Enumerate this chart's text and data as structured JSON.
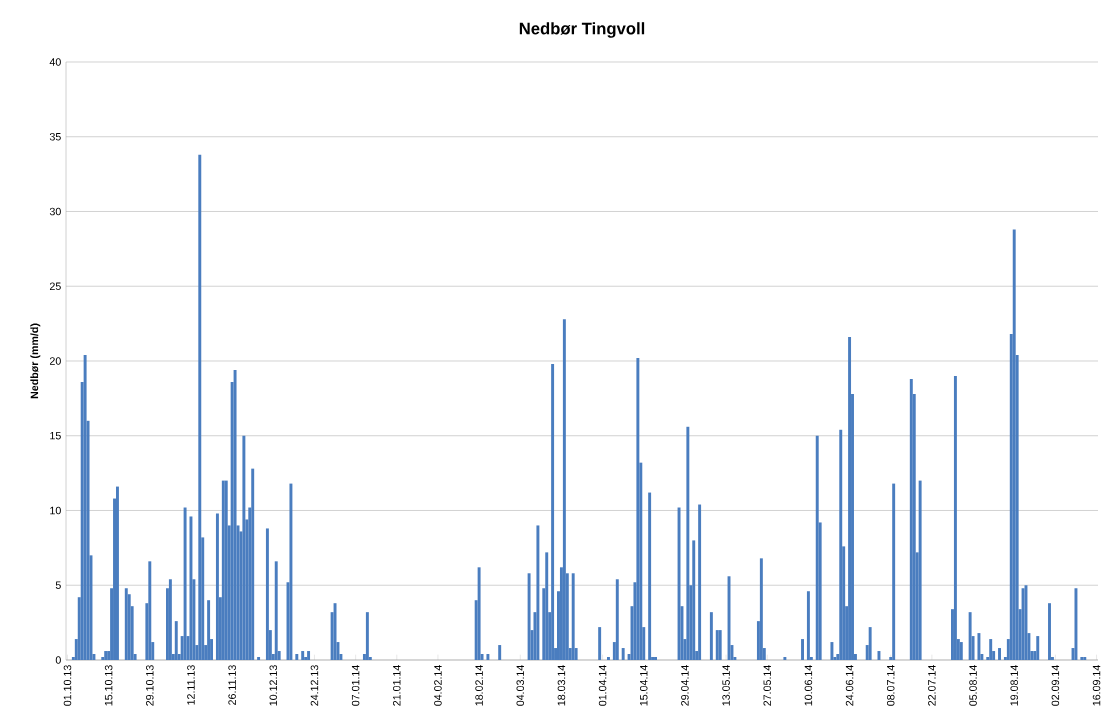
{
  "chart_data": {
    "type": "bar",
    "title": "Nedbør Tingvoll",
    "ylabel": "Nedbør (mm/d)",
    "color": "#4a7dbf",
    "grid": "y",
    "ylim": [
      0,
      40
    ],
    "yticks": [
      0,
      5,
      10,
      15,
      20,
      25,
      30,
      35,
      40
    ],
    "categories": [
      "01.10.13",
      null,
      null,
      null,
      null,
      null,
      null,
      null,
      null,
      null,
      null,
      null,
      null,
      null,
      "15.10.13",
      null,
      null,
      null,
      null,
      null,
      null,
      null,
      null,
      null,
      null,
      null,
      null,
      null,
      "29.10.13",
      null,
      null,
      null,
      null,
      null,
      null,
      null,
      null,
      null,
      null,
      null,
      null,
      null,
      "12.11.13",
      null,
      null,
      null,
      null,
      null,
      null,
      null,
      null,
      null,
      null,
      null,
      null,
      null,
      "26.11.13",
      null,
      null,
      null,
      null,
      null,
      null,
      null,
      null,
      null,
      null,
      null,
      null,
      null,
      "10.12.13",
      null,
      null,
      null,
      null,
      null,
      null,
      null,
      null,
      null,
      null,
      null,
      null,
      null,
      "24.12.13",
      null,
      null,
      null,
      null,
      null,
      null,
      null,
      null,
      null,
      null,
      null,
      null,
      null,
      "07.01.14",
      null,
      null,
      null,
      null,
      null,
      null,
      null,
      null,
      null,
      null,
      null,
      null,
      null,
      "21.01.14",
      null,
      null,
      null,
      null,
      null,
      null,
      null,
      null,
      null,
      null,
      null,
      null,
      null,
      "04.02.14",
      null,
      null,
      null,
      null,
      null,
      null,
      null,
      null,
      null,
      null,
      null,
      null,
      null,
      "18.02.14",
      null,
      null,
      null,
      null,
      null,
      null,
      null,
      null,
      null,
      null,
      null,
      null,
      null,
      "04.03.14",
      null,
      null,
      null,
      null,
      null,
      null,
      null,
      null,
      null,
      null,
      null,
      null,
      null,
      "18.03.14",
      null,
      null,
      null,
      null,
      null,
      null,
      null,
      null,
      null,
      null,
      null,
      null,
      null,
      "01.04.14",
      null,
      null,
      null,
      null,
      null,
      null,
      null,
      null,
      null,
      null,
      null,
      null,
      null,
      "15.04.14",
      null,
      null,
      null,
      null,
      null,
      null,
      null,
      null,
      null,
      null,
      null,
      null,
      null,
      "29.04.14",
      null,
      null,
      null,
      null,
      null,
      null,
      null,
      null,
      null,
      null,
      null,
      null,
      null,
      "13.05.14",
      null,
      null,
      null,
      null,
      null,
      null,
      null,
      null,
      null,
      null,
      null,
      null,
      null,
      "27.05.14",
      null,
      null,
      null,
      null,
      null,
      null,
      null,
      null,
      null,
      null,
      null,
      null,
      null,
      "10.06.14",
      null,
      null,
      null,
      null,
      null,
      null,
      null,
      null,
      null,
      null,
      null,
      null,
      null,
      "24.06.14",
      null,
      null,
      null,
      null,
      null,
      null,
      null,
      null,
      null,
      null,
      null,
      null,
      null,
      "08.07.14",
      null,
      null,
      null,
      null,
      null,
      null,
      null,
      null,
      null,
      null,
      null,
      null,
      null,
      "22.07.14",
      null,
      null,
      null,
      null,
      null,
      null,
      null,
      null,
      null,
      null,
      null,
      null,
      null,
      "05.08.14",
      null,
      null,
      null,
      null,
      null,
      null,
      null,
      null,
      null,
      null,
      null,
      null,
      null,
      "19.08.14",
      null,
      null,
      null,
      null,
      null,
      null,
      null,
      null,
      null,
      null,
      null,
      null,
      null,
      "02.09.14",
      null,
      null,
      null,
      null,
      null,
      null,
      null,
      null,
      null,
      null,
      null,
      null,
      null,
      "16.09.14"
    ],
    "values": [
      0,
      0,
      0.2,
      1.4,
      4.2,
      18.6,
      20.4,
      16.0,
      7.0,
      0.4,
      0,
      0,
      0.2,
      0.6,
      0.6,
      4.8,
      10.8,
      11.6,
      0,
      0,
      4.8,
      4.4,
      3.6,
      0.4,
      0,
      0,
      0,
      3.8,
      6.6,
      1.2,
      0,
      0,
      0,
      0,
      4.8,
      5.4,
      0.4,
      2.6,
      0.4,
      1.6,
      10.2,
      1.6,
      9.6,
      5.4,
      1.0,
      33.8,
      8.2,
      1.0,
      4.0,
      1.4,
      0,
      9.8,
      4.2,
      12.0,
      12.0,
      9.0,
      18.6,
      19.4,
      9.0,
      8.6,
      15.0,
      9.4,
      10.2,
      12.8,
      0,
      0.2,
      0,
      0,
      8.8,
      2.0,
      0.4,
      6.6,
      0.6,
      0,
      0,
      5.2,
      11.8,
      0,
      0.4,
      0,
      0.6,
      0.2,
      0.6,
      0,
      0,
      0,
      0,
      0,
      0,
      0,
      3.2,
      3.8,
      1.2,
      0.4,
      0,
      0,
      0,
      0,
      0,
      0,
      0,
      0.4,
      3.2,
      0.2,
      0,
      0,
      0,
      0,
      0,
      0,
      0,
      0,
      0,
      0,
      0,
      0,
      0,
      0,
      0,
      0,
      0,
      0,
      0,
      0,
      0,
      0,
      0,
      0,
      0,
      0,
      0,
      0,
      0,
      0,
      0,
      0,
      0,
      0,
      0,
      4.0,
      6.2,
      0.4,
      0,
      0.4,
      0,
      0,
      0,
      1.0,
      0,
      0,
      0,
      0,
      0,
      0,
      0,
      0,
      0,
      5.8,
      2.0,
      3.2,
      9.0,
      0,
      4.8,
      7.2,
      3.2,
      19.8,
      0.8,
      4.6,
      6.2,
      22.8,
      5.8,
      0.8,
      5.8,
      0.8,
      0,
      0,
      0,
      0,
      0,
      0,
      0,
      2.2,
      0,
      0,
      0.2,
      0,
      1.2,
      5.4,
      0,
      0.8,
      0,
      0.4,
      3.6,
      5.2,
      20.2,
      13.2,
      2.2,
      0,
      11.2,
      0.2,
      0.2,
      0,
      0,
      0,
      0,
      0,
      0,
      0,
      10.2,
      3.6,
      1.4,
      15.6,
      5.0,
      8.0,
      0.6,
      10.4,
      0,
      0,
      0,
      3.2,
      0,
      2.0,
      2.0,
      0,
      0,
      5.6,
      1.0,
      0.2,
      0,
      0,
      0,
      0,
      0,
      0,
      0,
      2.6,
      6.8,
      0.8,
      0,
      0,
      0,
      0,
      0,
      0,
      0.2,
      0,
      0,
      0,
      0,
      0,
      1.4,
      0,
      4.6,
      0.2,
      0,
      15.0,
      9.2,
      0,
      0,
      0,
      1.2,
      0.2,
      0.4,
      15.4,
      7.6,
      3.6,
      21.6,
      17.8,
      0.4,
      0,
      0,
      0,
      1.0,
      2.2,
      0,
      0,
      0.6,
      0,
      0,
      0,
      0.2,
      11.8,
      0,
      0,
      0,
      0,
      0,
      18.8,
      17.8,
      7.2,
      12.0,
      0,
      0,
      0,
      0,
      0,
      0,
      0,
      0,
      0,
      0,
      3.4,
      19.0,
      1.4,
      1.2,
      0,
      0,
      3.2,
      1.6,
      0,
      1.8,
      0.4,
      0,
      0.2,
      1.4,
      0.6,
      0,
      0.8,
      0,
      0.2,
      1.4,
      21.8,
      28.8,
      20.4,
      3.4,
      4.8,
      5.0,
      1.8,
      0.6,
      0.6,
      1.6,
      0,
      0,
      0,
      3.8,
      0.2,
      0,
      0,
      0,
      0,
      0,
      0,
      0.8,
      4.8,
      0,
      0.2,
      0.2,
      0,
      0,
      0,
      0
    ]
  }
}
